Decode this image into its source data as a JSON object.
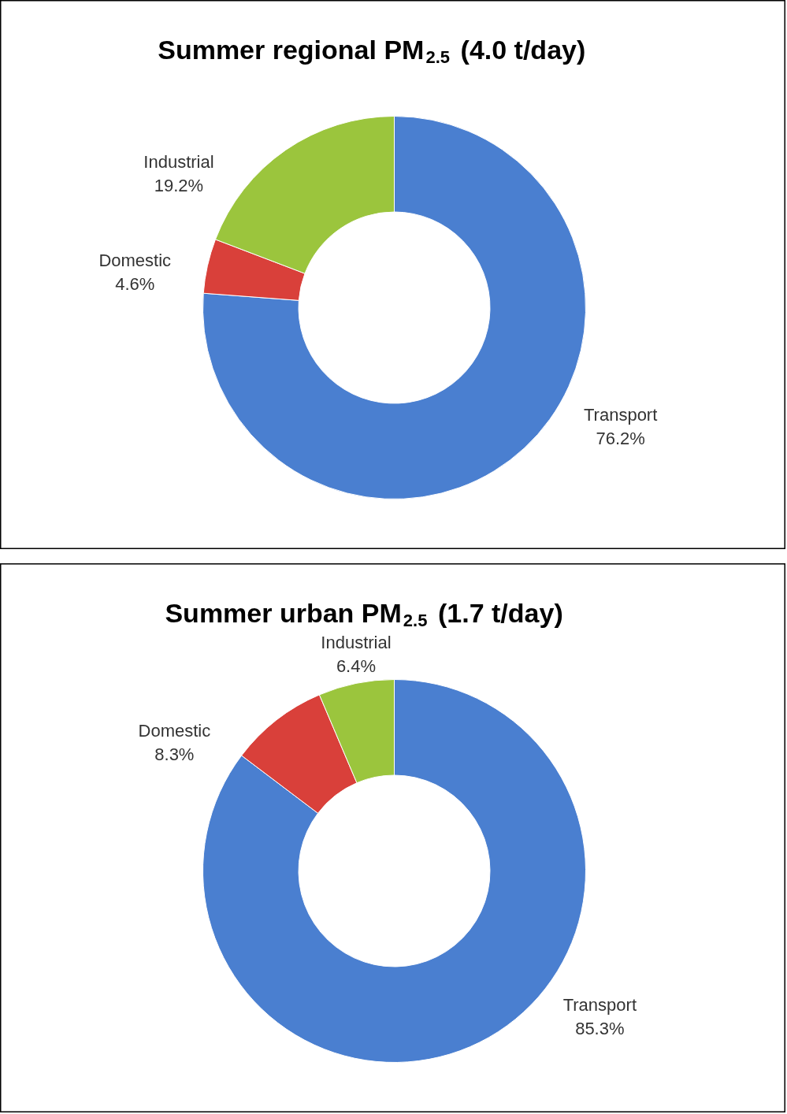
{
  "chart_data": [
    {
      "type": "donut",
      "title": "Summer regional PM$_{2.5}$ (4.0 t/day)",
      "categories": [
        "Transport",
        "Domestic",
        "Industrial"
      ],
      "values": [
        76.2,
        4.6,
        19.2
      ],
      "value_labels": [
        "76.2%",
        "4.6%",
        "19.2%"
      ],
      "colors": [
        "#4a7fd0",
        "#d9403a",
        "#9bc53d"
      ],
      "legend": false
    },
    {
      "type": "donut",
      "title": "Summer urban PM$_{2.5}$ (1.7 t/day)",
      "categories": [
        "Transport",
        "Domestic",
        "Industrial"
      ],
      "values": [
        85.3,
        8.3,
        6.4
      ],
      "value_labels": [
        "85.3%",
        "8.3%",
        "6.4%"
      ],
      "colors": [
        "#4a7fd0",
        "#d9403a",
        "#9bc53d"
      ],
      "legend": false
    }
  ]
}
